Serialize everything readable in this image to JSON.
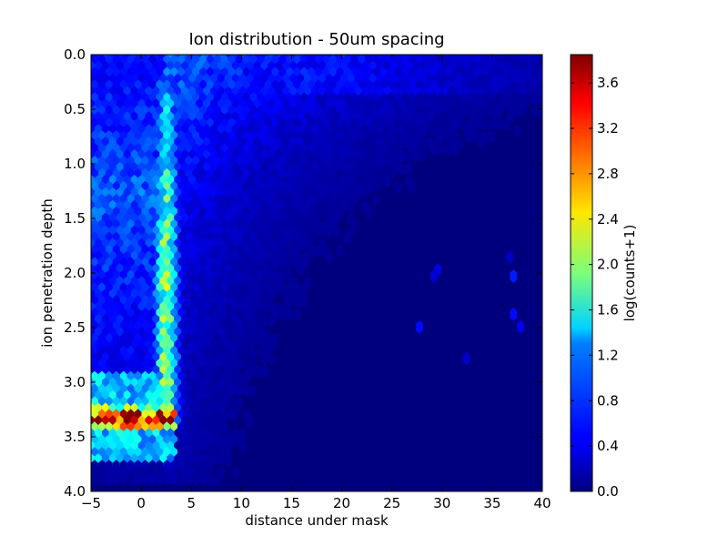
{
  "chart_data": {
    "type": "heatmap",
    "subtype": "hexbin",
    "title": "Ion distribution - 50um spacing",
    "xlabel": "distance under mask",
    "ylabel": "ion penetration depth",
    "xlim": [
      -5,
      40
    ],
    "ylim": [
      4.0,
      0.0
    ],
    "y_inverted": true,
    "x_ticks": [
      "−5",
      "0",
      "5",
      "10",
      "15",
      "20",
      "25",
      "30",
      "35",
      "40"
    ],
    "x_tick_values": [
      -5,
      0,
      5,
      10,
      15,
      20,
      25,
      30,
      35,
      40
    ],
    "y_ticks": [
      "0.0",
      "0.5",
      "1.0",
      "1.5",
      "2.0",
      "2.5",
      "3.0",
      "3.5",
      "4.0"
    ],
    "y_tick_values": [
      0.0,
      0.5,
      1.0,
      1.5,
      2.0,
      2.5,
      3.0,
      3.5,
      4.0
    ],
    "colorbar": {
      "label": "log(counts+1)",
      "range": [
        0.0,
        3.85
      ],
      "ticks": [
        "0.0",
        "0.4",
        "0.8",
        "1.2",
        "1.6",
        "2.0",
        "2.4",
        "2.8",
        "3.2",
        "3.6"
      ],
      "tick_values": [
        0.0,
        0.4,
        0.8,
        1.2,
        1.6,
        2.0,
        2.4,
        2.8,
        3.2,
        3.6
      ],
      "colormap": "jet"
    },
    "features": {
      "peak_band": {
        "x_range": [
          -5,
          3
        ],
        "y_center": 3.35,
        "y_halfwidth": 0.12,
        "value": 3.8
      },
      "vertical_ridge": {
        "x_center": 2.5,
        "x_halfwidth": 1.0,
        "y_range": [
          0.8,
          3.2
        ],
        "value": 1.8
      },
      "empty_row_depth": 3.95
    }
  }
}
